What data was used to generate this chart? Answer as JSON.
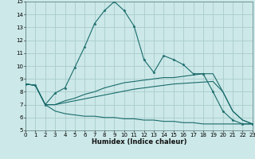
{
  "title": "",
  "xlabel": "Humidex (Indice chaleur)",
  "background_color": "#cce8e8",
  "grid_color": "#aacccc",
  "line_color": "#1a6b6b",
  "ylim": [
    5,
    15
  ],
  "xlim": [
    0,
    23
  ],
  "yticks": [
    5,
    6,
    7,
    8,
    9,
    10,
    11,
    12,
    13,
    14,
    15
  ],
  "xticks": [
    0,
    1,
    2,
    3,
    4,
    5,
    6,
    7,
    8,
    9,
    10,
    11,
    12,
    13,
    14,
    15,
    16,
    17,
    18,
    19,
    20,
    21,
    22,
    23
  ],
  "series1_x": [
    0,
    1,
    2,
    3,
    4,
    5,
    6,
    7,
    8,
    9,
    10,
    11,
    12,
    13,
    14,
    15,
    16,
    17,
    18,
    19,
    20,
    21,
    22,
    23
  ],
  "series1_y": [
    8.6,
    8.5,
    7.0,
    7.9,
    8.3,
    9.9,
    11.5,
    13.3,
    14.3,
    15.0,
    14.3,
    13.1,
    10.5,
    9.5,
    10.8,
    10.5,
    10.1,
    9.4,
    9.4,
    8.0,
    6.5,
    5.8,
    5.5,
    5.5
  ],
  "series2_x": [
    0,
    1,
    2,
    3,
    4,
    5,
    6,
    7,
    8,
    9,
    10,
    11,
    12,
    13,
    14,
    15,
    16,
    17,
    18,
    19,
    20,
    21,
    22,
    23
  ],
  "series2_y": [
    8.6,
    8.5,
    7.0,
    6.5,
    6.3,
    6.2,
    6.1,
    6.1,
    6.0,
    6.0,
    5.9,
    5.9,
    5.8,
    5.8,
    5.7,
    5.7,
    5.6,
    5.6,
    5.5,
    5.5,
    5.5,
    5.5,
    5.5,
    5.5
  ],
  "series3_x": [
    0,
    1,
    2,
    3,
    4,
    5,
    6,
    7,
    8,
    9,
    10,
    11,
    12,
    13,
    14,
    15,
    16,
    17,
    18,
    19,
    20,
    21,
    22,
    23
  ],
  "series3_y": [
    8.6,
    8.5,
    7.0,
    7.0,
    7.15,
    7.3,
    7.45,
    7.6,
    7.75,
    7.9,
    8.05,
    8.2,
    8.3,
    8.4,
    8.5,
    8.6,
    8.65,
    8.7,
    8.75,
    8.8,
    8.0,
    6.5,
    5.8,
    5.5
  ],
  "series4_x": [
    0,
    1,
    2,
    3,
    4,
    5,
    6,
    7,
    8,
    9,
    10,
    11,
    12,
    13,
    14,
    15,
    16,
    17,
    18,
    19,
    20,
    21,
    22,
    23
  ],
  "series4_y": [
    8.6,
    8.5,
    7.0,
    7.0,
    7.3,
    7.5,
    7.8,
    8.0,
    8.3,
    8.5,
    8.7,
    8.8,
    8.9,
    9.0,
    9.1,
    9.1,
    9.2,
    9.3,
    9.4,
    9.4,
    8.0,
    6.5,
    5.8,
    5.5
  ],
  "xlabel_fontsize": 6,
  "tick_fontsize": 5
}
